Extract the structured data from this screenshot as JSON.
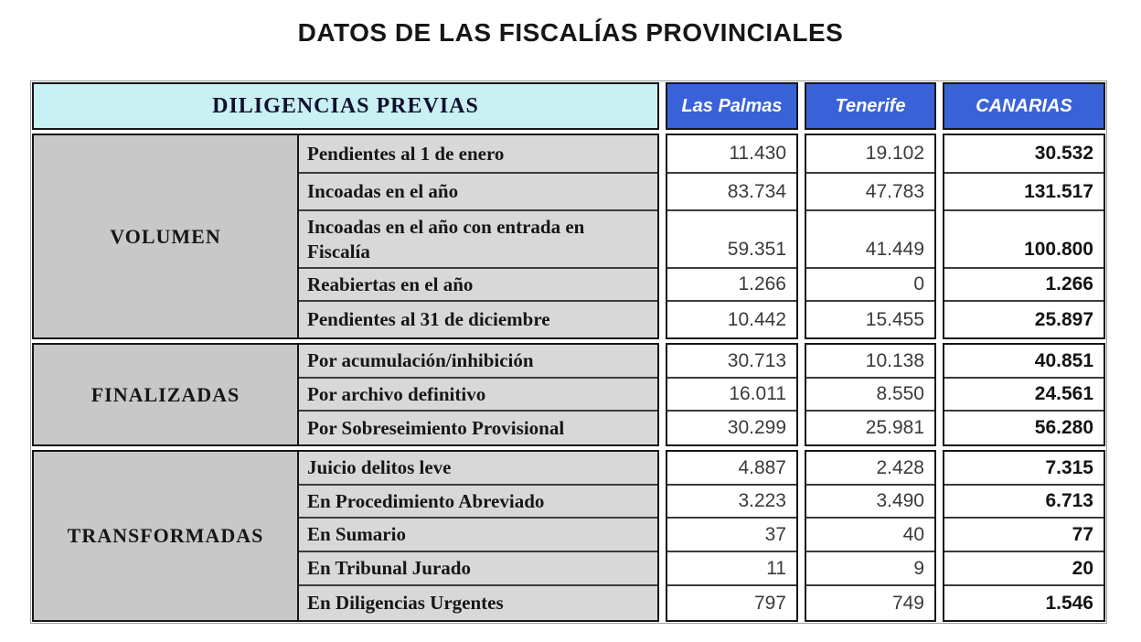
{
  "title": "DATOS DE LAS FISCALÍAS PROVINCIALES",
  "table": {
    "header": {
      "label": "DILIGENCIAS PREVIAS",
      "columns": [
        "Las Palmas",
        "Tenerife",
        "CANARIAS"
      ]
    },
    "sections": [
      {
        "name": "VOLUMEN",
        "rows": [
          {
            "label": "Pendientes al 1 de enero",
            "las_palmas": "11.430",
            "tenerife": "19.102",
            "canarias": "30.532"
          },
          {
            "label": "Incoadas en el año",
            "las_palmas": "83.734",
            "tenerife": "47.783",
            "canarias": "131.517"
          },
          {
            "label": "Incoadas en el año con entrada en Fiscalía",
            "las_palmas": "59.351",
            "tenerife": "41.449",
            "canarias": "100.800"
          },
          {
            "label": "Reabiertas en el año",
            "las_palmas": "1.266",
            "tenerife": "0",
            "canarias": "1.266"
          },
          {
            "label": "Pendientes  al 31 de diciembre",
            "las_palmas": "10.442",
            "tenerife": "15.455",
            "canarias": "25.897"
          }
        ]
      },
      {
        "name": "FINALIZADAS",
        "rows": [
          {
            "label": "Por acumulación/inhibición",
            "las_palmas": "30.713",
            "tenerife": "10.138",
            "canarias": "40.851"
          },
          {
            "label": "Por archivo definitivo",
            "las_palmas": "16.011",
            "tenerife": "8.550",
            "canarias": "24.561"
          },
          {
            "label": "Por Sobreseimiento Provisional",
            "las_palmas": "30.299",
            "tenerife": "25.981",
            "canarias": "56.280"
          }
        ]
      },
      {
        "name": "TRANSFORMADAS",
        "rows": [
          {
            "label": "Juicio delitos leve",
            "las_palmas": "4.887",
            "tenerife": "2.428",
            "canarias": "7.315"
          },
          {
            "label": "En Procedimiento Abreviado",
            "las_palmas": "3.223",
            "tenerife": "3.490",
            "canarias": "6.713"
          },
          {
            "label": "En Sumario",
            "las_palmas": "37",
            "tenerife": "40",
            "canarias": "77"
          },
          {
            "label": "En Tribunal Jurado",
            "las_palmas": "11",
            "tenerife": "9",
            "canarias": "20"
          },
          {
            "label": "En Diligencias Urgentes",
            "las_palmas": "797",
            "tenerife": "749",
            "canarias": "1.546"
          }
        ]
      }
    ]
  },
  "colors": {
    "header_cyan": "#c9f0f2",
    "header_blue": "#3a62d8",
    "section_grey": "#c8c8c8",
    "label_grey": "#d8d8d8",
    "border_black": "#161616"
  }
}
